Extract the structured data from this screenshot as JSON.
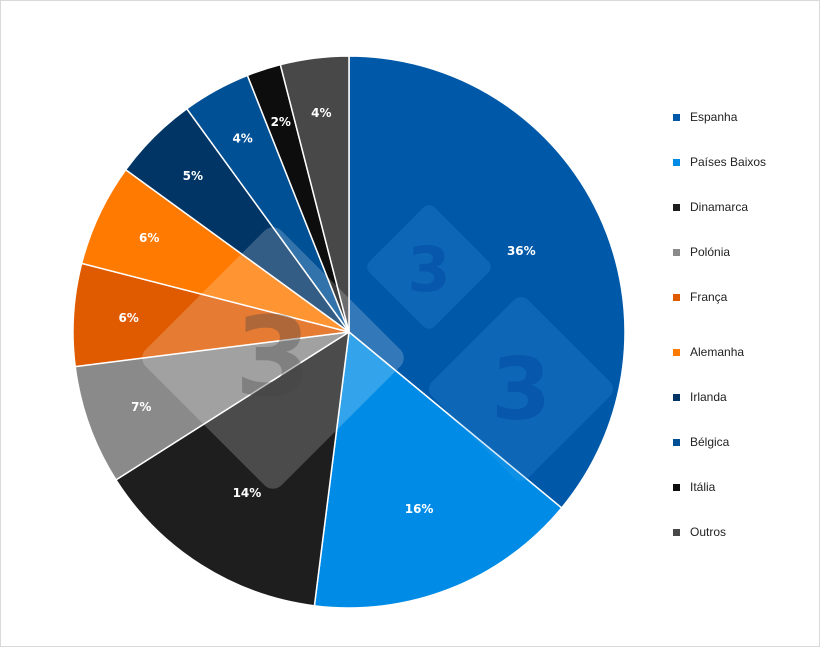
{
  "chart_data": {
    "type": "pie",
    "title": "",
    "slices": [
      {
        "label": "Espanha",
        "value": 36,
        "display": "36%",
        "color": "#0058a8"
      },
      {
        "label": "Países Baixos",
        "value": 16,
        "display": "16%",
        "color": "#008ce6"
      },
      {
        "label": "Dinamarca",
        "value": 14,
        "display": "14%",
        "color": "#1e1e1e"
      },
      {
        "label": "Polónia",
        "value": 7,
        "display": "7%",
        "color": "#8a8a8a"
      },
      {
        "label": "França",
        "value": 6,
        "display": "6%",
        "color": "#e05a00"
      },
      {
        "label": "Alemanha",
        "value": 6,
        "display": "6%",
        "color": "#ff7a00"
      },
      {
        "label": "Irlanda",
        "value": 5,
        "display": "5%",
        "color": "#003566"
      },
      {
        "label": "Bélgica",
        "value": 4,
        "display": "4%",
        "color": "#005096"
      },
      {
        "label": "Itália",
        "value": 2,
        "display": "2%",
        "color": "#0d0d0d"
      },
      {
        "label": "Outros",
        "value": 4,
        "display": "4%",
        "color": "#484848"
      }
    ],
    "legend_position": "right",
    "start_angle": "top",
    "direction": "clockwise"
  },
  "legend": {
    "items": [
      {
        "label": "Espanha",
        "color": "#0058a8"
      },
      {
        "label": "Países Baixos",
        "color": "#008ce6"
      },
      {
        "label": "Dinamarca",
        "color": "#1e1e1e"
      },
      {
        "label": "Polónia",
        "color": "#8a8a8a"
      },
      {
        "label": "França",
        "color": "#e05a00"
      },
      {
        "label": "Alemanha",
        "color": "#ff7a00"
      },
      {
        "label": "Irlanda",
        "color": "#003566"
      },
      {
        "label": "Bélgica",
        "color": "#005096"
      },
      {
        "label": "Itália",
        "color": "#0d0d0d"
      },
      {
        "label": "Outros",
        "color": "#484848"
      }
    ]
  },
  "watermark": {
    "glyph": "3"
  }
}
